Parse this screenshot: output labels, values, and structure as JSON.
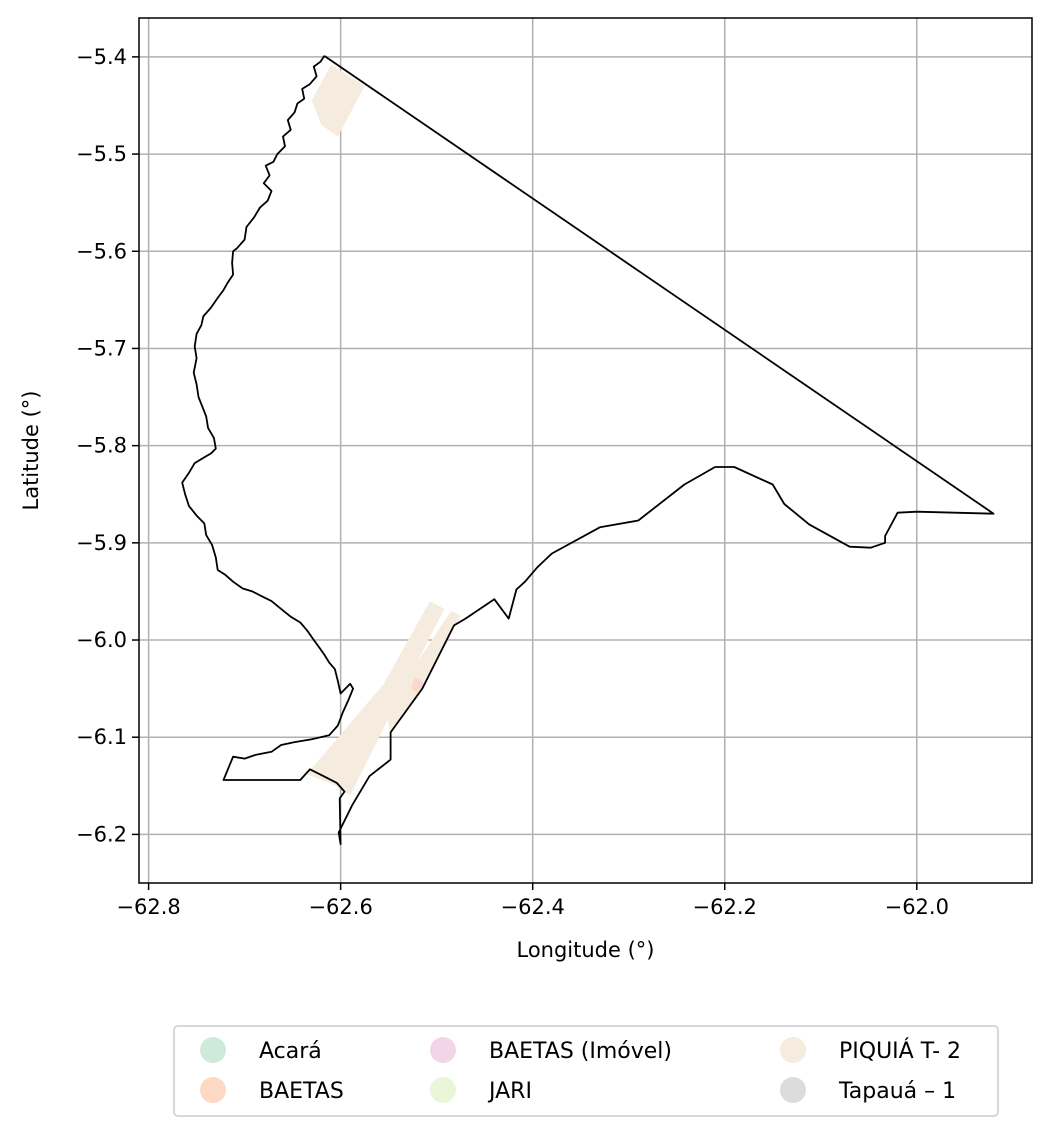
{
  "chart_data": {
    "type": "map",
    "title": "",
    "xlabel": "Longitude (°)",
    "ylabel": "Latitude (°)",
    "xlim": [
      -62.81,
      -61.88
    ],
    "ylim": [
      -6.25,
      -5.36
    ],
    "x_ticks": [
      {
        "value": -62.8,
        "label": "−62.8"
      },
      {
        "value": -62.6,
        "label": "−62.6"
      },
      {
        "value": -62.4,
        "label": "−62.4"
      },
      {
        "value": -62.2,
        "label": "−62.2"
      },
      {
        "value": -62.0,
        "label": "−62.0"
      }
    ],
    "y_ticks": [
      {
        "value": -5.4,
        "label": "−5.4"
      },
      {
        "value": -5.5,
        "label": "−5.5"
      },
      {
        "value": -5.6,
        "label": "−5.6"
      },
      {
        "value": -5.7,
        "label": "−5.7"
      },
      {
        "value": -5.8,
        "label": "−5.8"
      },
      {
        "value": -5.9,
        "label": "−5.9"
      },
      {
        "value": -6.0,
        "label": "−6.0"
      },
      {
        "value": -6.1,
        "label": "−6.1"
      },
      {
        "value": -6.2,
        "label": "−6.2"
      }
    ],
    "grid": true,
    "legend_placement": "bottom",
    "legend": [
      {
        "name": "Acará",
        "color": "#cdeadb"
      },
      {
        "name": "BAETAS",
        "color": "#fcd9c3"
      },
      {
        "name": "BAETAS (Imóvel)",
        "color": "#f3d5ea"
      },
      {
        "name": "JARI",
        "color": "#e9f6d8"
      },
      {
        "name": "PIQUIÁ T- 2",
        "color": "#f5ebde"
      },
      {
        "name": "Tapauá – 1",
        "color": "#dcdcdc"
      }
    ],
    "boundary": [
      [
        -62.617,
        -5.399
      ],
      [
        -62.621,
        -5.405
      ],
      [
        -62.628,
        -5.41
      ],
      [
        -62.625,
        -5.42
      ],
      [
        -62.632,
        -5.428
      ],
      [
        -62.64,
        -5.433
      ],
      [
        -62.638,
        -5.443
      ],
      [
        -62.645,
        -5.448
      ],
      [
        -62.648,
        -5.457
      ],
      [
        -62.655,
        -5.465
      ],
      [
        -62.652,
        -5.475
      ],
      [
        -62.66,
        -5.482
      ],
      [
        -62.658,
        -5.492
      ],
      [
        -62.666,
        -5.5
      ],
      [
        -62.67,
        -5.508
      ],
      [
        -62.678,
        -5.512
      ],
      [
        -62.674,
        -5.522
      ],
      [
        -62.68,
        -5.53
      ],
      [
        -62.672,
        -5.538
      ],
      [
        -62.676,
        -5.548
      ],
      [
        -62.684,
        -5.555
      ],
      [
        -62.69,
        -5.565
      ],
      [
        -62.698,
        -5.575
      ],
      [
        -62.7,
        -5.588
      ],
      [
        -62.708,
        -5.597
      ],
      [
        -62.712,
        -5.6
      ],
      [
        -62.713,
        -5.612
      ],
      [
        -62.712,
        -5.624
      ],
      [
        -62.718,
        -5.633
      ],
      [
        -62.722,
        -5.64
      ],
      [
        -62.728,
        -5.648
      ],
      [
        -62.735,
        -5.658
      ],
      [
        -62.743,
        -5.667
      ],
      [
        -62.745,
        -5.676
      ],
      [
        -62.75,
        -5.685
      ],
      [
        -62.752,
        -5.698
      ],
      [
        -62.75,
        -5.71
      ],
      [
        -62.753,
        -5.725
      ],
      [
        -62.75,
        -5.737
      ],
      [
        -62.748,
        -5.75
      ],
      [
        -62.744,
        -5.76
      ],
      [
        -62.74,
        -5.77
      ],
      [
        -62.738,
        -5.782
      ],
      [
        -62.732,
        -5.792
      ],
      [
        -62.73,
        -5.803
      ],
      [
        -62.735,
        -5.808
      ],
      [
        -62.742,
        -5.812
      ],
      [
        -62.752,
        -5.818
      ],
      [
        -62.758,
        -5.828
      ],
      [
        -62.765,
        -5.838
      ],
      [
        -62.762,
        -5.85
      ],
      [
        -62.758,
        -5.862
      ],
      [
        -62.75,
        -5.872
      ],
      [
        -62.742,
        -5.88
      ],
      [
        -62.74,
        -5.892
      ],
      [
        -62.734,
        -5.902
      ],
      [
        -62.73,
        -5.915
      ],
      [
        -62.728,
        -5.928
      ],
      [
        -62.72,
        -5.933
      ],
      [
        -62.712,
        -5.94
      ],
      [
        -62.702,
        -5.947
      ],
      [
        -62.692,
        -5.95
      ],
      [
        -62.682,
        -5.955
      ],
      [
        -62.672,
        -5.96
      ],
      [
        -62.662,
        -5.968
      ],
      [
        -62.652,
        -5.976
      ],
      [
        -62.642,
        -5.982
      ],
      [
        -62.635,
        -5.99
      ],
      [
        -62.628,
        -6.0
      ],
      [
        -62.622,
        -6.008
      ],
      [
        -62.617,
        -6.015
      ],
      [
        -62.612,
        -6.023
      ],
      [
        -62.606,
        -6.03
      ],
      [
        -62.603,
        -6.042
      ],
      [
        -62.6,
        -6.055
      ],
      [
        -62.59,
        -6.045
      ],
      [
        -62.587,
        -6.05
      ],
      [
        -62.592,
        -6.062
      ],
      [
        -62.598,
        -6.075
      ],
      [
        -62.603,
        -6.088
      ],
      [
        -62.612,
        -6.098
      ],
      [
        -62.63,
        -6.102
      ],
      [
        -62.648,
        -6.105
      ],
      [
        -62.662,
        -6.108
      ],
      [
        -62.672,
        -6.115
      ],
      [
        -62.688,
        -6.118
      ],
      [
        -62.7,
        -6.122
      ],
      [
        -62.712,
        -6.12
      ],
      [
        -62.717,
        -6.132
      ],
      [
        -62.722,
        -6.144
      ],
      [
        -62.642,
        -6.144
      ],
      [
        -62.632,
        -6.133
      ],
      [
        -62.618,
        -6.14
      ],
      [
        -62.604,
        -6.147
      ],
      [
        -62.596,
        -6.156
      ],
      [
        -62.601,
        -6.163
      ],
      [
        -62.6,
        -6.21
      ],
      [
        -62.602,
        -6.198
      ],
      [
        -62.588,
        -6.17
      ],
      [
        -62.57,
        -6.14
      ],
      [
        -62.548,
        -6.123
      ],
      [
        -62.548,
        -6.095
      ],
      [
        -62.515,
        -6.05
      ],
      [
        -62.482,
        -5.985
      ],
      [
        -62.47,
        -5.978
      ],
      [
        -62.44,
        -5.958
      ],
      [
        -62.425,
        -5.978
      ],
      [
        -62.417,
        -5.948
      ],
      [
        -62.408,
        -5.94
      ],
      [
        -62.395,
        -5.925
      ],
      [
        -62.38,
        -5.911
      ],
      [
        -62.33,
        -5.884
      ],
      [
        -62.29,
        -5.877
      ],
      [
        -62.242,
        -5.84
      ],
      [
        -62.21,
        -5.822
      ],
      [
        -62.19,
        -5.822
      ],
      [
        -62.15,
        -5.84
      ],
      [
        -62.138,
        -5.86
      ],
      [
        -62.112,
        -5.881
      ],
      [
        -62.07,
        -5.904
      ],
      [
        -62.048,
        -5.905
      ],
      [
        -62.033,
        -5.9
      ],
      [
        -62.033,
        -5.893
      ],
      [
        -62.02,
        -5.869
      ],
      [
        -62.0,
        -5.868
      ],
      [
        -61.92,
        -5.87
      ],
      [
        -62.617,
        -5.399
      ]
    ],
    "areas": [
      {
        "name": "PIQUIÁ T- 2",
        "color": "#f5ebde",
        "points": [
          [
            -62.61,
            -5.408
          ],
          [
            -62.575,
            -5.43
          ],
          [
            -62.603,
            -5.482
          ],
          [
            -62.62,
            -5.47
          ],
          [
            -62.63,
            -5.445
          ]
        ]
      },
      {
        "name": "PIQUIÁ T- 2",
        "color": "#f5ebde",
        "points": [
          [
            -62.507,
            -5.96
          ],
          [
            -62.492,
            -5.968
          ],
          [
            -62.545,
            -6.07
          ],
          [
            -62.59,
            -6.16
          ],
          [
            -62.605,
            -6.15
          ],
          [
            -62.635,
            -6.138
          ],
          [
            -62.555,
            -6.045
          ]
        ]
      },
      {
        "name": "PIQUIÁ T- 2",
        "color": "#f5ebde",
        "points": [
          [
            -62.485,
            -5.97
          ],
          [
            -62.475,
            -5.975
          ],
          [
            -62.515,
            -6.05
          ],
          [
            -62.548,
            -6.095
          ],
          [
            -62.552,
            -6.078
          ],
          [
            -62.525,
            -6.03
          ]
        ]
      },
      {
        "name": "BAETAS",
        "color": "#fcd9c3",
        "points": [
          [
            -62.523,
            -6.038
          ],
          [
            -62.517,
            -6.042
          ],
          [
            -62.52,
            -6.055
          ],
          [
            -62.526,
            -6.05
          ]
        ]
      },
      {
        "name": "BAETAS (Imóvel)",
        "color": "#f3d5ea",
        "points": [
          [
            -62.518,
            -6.04
          ],
          [
            -62.514,
            -6.044
          ],
          [
            -62.516,
            -6.052
          ],
          [
            -62.52,
            -6.048
          ]
        ]
      }
    ]
  }
}
